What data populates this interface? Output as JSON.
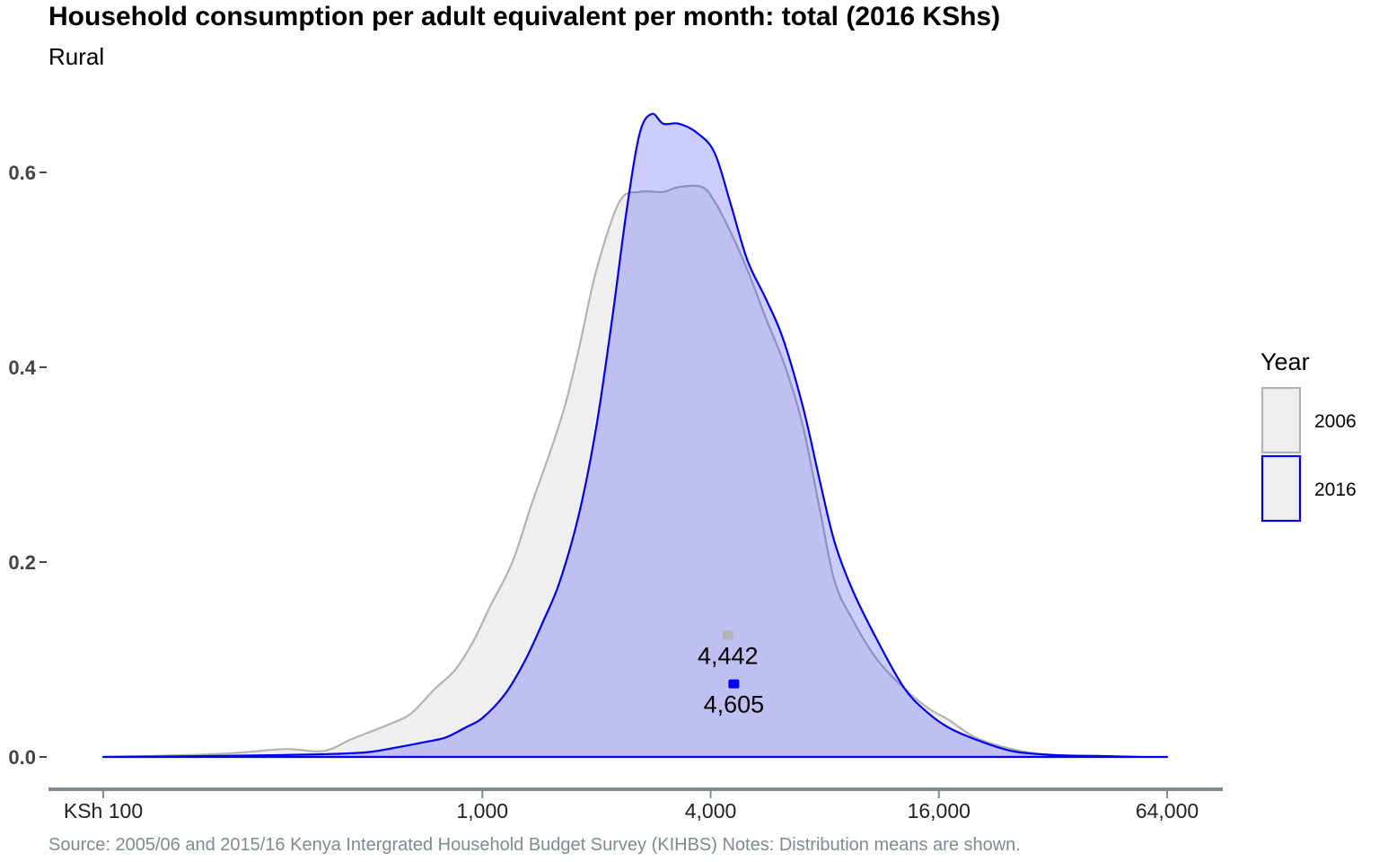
{
  "chart_data": {
    "type": "area",
    "title": "Household consumption per adult equivalent per month: total (2016 KShs)",
    "subtitle": "Rural",
    "caption": "Source: 2005/06 and 2015/16 Kenya Intergrated Household Budget Survey (KIHBS) Notes: Distribution means are shown.",
    "x_scale": "log2",
    "xlim": [
      100,
      64000
    ],
    "ylim": [
      0,
      0.66
    ],
    "x_ticks": [
      {
        "value": 100,
        "label": "KSh 100"
      },
      {
        "value": 1000,
        "label": "1,000"
      },
      {
        "value": 4000,
        "label": "4,000"
      },
      {
        "value": 16000,
        "label": "16,000"
      },
      {
        "value": 64000,
        "label": "64,000"
      }
    ],
    "y_ticks": [
      {
        "value": 0.0,
        "label": "0.0"
      },
      {
        "value": 0.2,
        "label": "0.2"
      },
      {
        "value": 0.4,
        "label": "0.4"
      },
      {
        "value": 0.6,
        "label": "0.6"
      }
    ],
    "grid": false,
    "legend": {
      "title": "Year",
      "position": "right"
    },
    "series": [
      {
        "name": "2006",
        "stroke": "#b3b3b3",
        "fill": "#efefef",
        "x": [
          100,
          200,
          300,
          380,
          450,
          500,
          580,
          650,
          750,
          850,
          950,
          1050,
          1200,
          1350,
          1500,
          1650,
          1800,
          2000,
          2300,
          2600,
          3000,
          3300,
          3800,
          4100,
          4500,
          5000,
          5600,
          6300,
          7000,
          7800,
          8500,
          9500,
          11000,
          13000,
          15000,
          17000,
          20000,
          25000,
          32000,
          42000,
          55000,
          64000
        ],
        "y": [
          0,
          0.003,
          0.008,
          0.006,
          0.018,
          0.025,
          0.035,
          0.045,
          0.07,
          0.09,
          0.12,
          0.155,
          0.2,
          0.26,
          0.31,
          0.36,
          0.42,
          0.5,
          0.57,
          0.58,
          0.58,
          0.585,
          0.585,
          0.57,
          0.54,
          0.5,
          0.45,
          0.4,
          0.34,
          0.25,
          0.18,
          0.14,
          0.1,
          0.07,
          0.05,
          0.038,
          0.02,
          0.008,
          0.002,
          0.001,
          0,
          0
        ]
      },
      {
        "name": "2016",
        "stroke": "#0000ee",
        "fill": "#0000ff",
        "fill_opacity": 0.2,
        "x": [
          100,
          200,
          300,
          400,
          500,
          600,
          700,
          800,
          900,
          1000,
          1150,
          1300,
          1450,
          1600,
          1800,
          2000,
          2200,
          2400,
          2600,
          2800,
          3000,
          3300,
          3700,
          4100,
          4500,
          5000,
          5600,
          6200,
          7000,
          7800,
          8500,
          9500,
          11000,
          13000,
          15000,
          17000,
          20000,
          25000,
          32000,
          42000,
          55000,
          64000
        ],
        "y": [
          0,
          0.001,
          0.002,
          0.003,
          0.005,
          0.01,
          0.015,
          0.02,
          0.03,
          0.04,
          0.065,
          0.1,
          0.14,
          0.18,
          0.25,
          0.34,
          0.45,
          0.56,
          0.64,
          0.66,
          0.65,
          0.65,
          0.64,
          0.62,
          0.57,
          0.51,
          0.47,
          0.43,
          0.36,
          0.28,
          0.22,
          0.17,
          0.12,
          0.07,
          0.045,
          0.03,
          0.018,
          0.006,
          0.002,
          0.001,
          0,
          0
        ]
      }
    ],
    "means": [
      {
        "series": "2006",
        "x": 4442,
        "y": 0.125,
        "label": "4,442",
        "color": "#b3b3b3"
      },
      {
        "series": "2016",
        "x": 4605,
        "y": 0.075,
        "label": "4,605",
        "color": "#0000ff"
      }
    ]
  }
}
